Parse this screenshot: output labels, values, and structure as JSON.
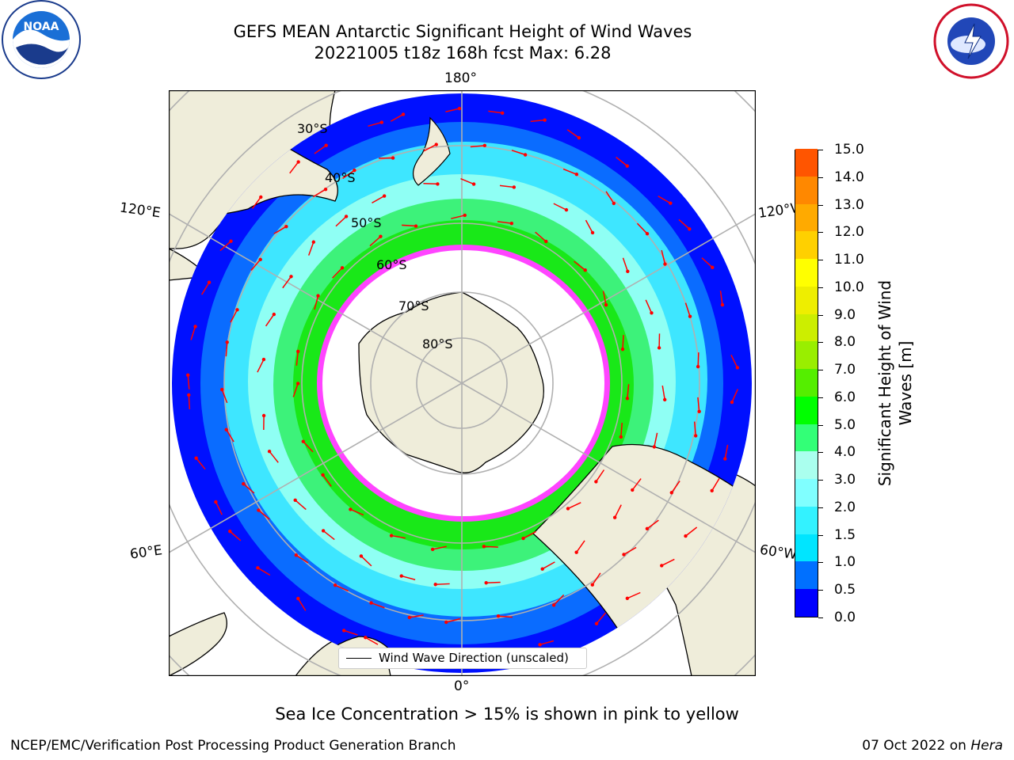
{
  "title_line1": "GEFS MEAN Antarctic Significant Height of Wind Waves",
  "title_line2": "20221005 t18z 168h fcst   Max: 6.28",
  "logos": {
    "left": "NOAA",
    "right": "National Weather Service"
  },
  "map": {
    "projection": "south-polar-stereographic",
    "lon_labels": {
      "top": "180°",
      "bottom": "0°",
      "upper_left": "120°E",
      "lower_left": "60°E",
      "upper_right": "120°W",
      "lower_right": "60°W"
    },
    "lat_labels": [
      "30°S",
      "40°S",
      "50°S",
      "60°S",
      "70°S",
      "80°S"
    ],
    "legend_label": "Wind Wave Direction (unscaled)",
    "colors": {
      "land": "#efedda",
      "ice": "#ffffff",
      "ice_edge": "#ff33ff",
      "arrows": "#ff0000",
      "grid": "#b0b0b0"
    }
  },
  "colorbar": {
    "label": "Significant Height of Wind Waves [m]",
    "ticks": [
      "15.0",
      "14.0",
      "13.0",
      "12.0",
      "11.0",
      "10.0",
      "9.0",
      "8.0",
      "7.0",
      "6.0",
      "5.0",
      "4.0",
      "3.0",
      "2.0",
      "1.5",
      "1.0",
      "0.5",
      "0.0"
    ],
    "colors": [
      "#0000ff",
      "#0070ff",
      "#00e5ff",
      "#33f2ff",
      "#80ffff",
      "#aaffee",
      "#33ff77",
      "#00ff00",
      "#55ee00",
      "#99ee00",
      "#ccee00",
      "#eeee00",
      "#ffff00",
      "#ffd000",
      "#ffaa00",
      "#ff8800",
      "#ff5500",
      "#ff2200",
      "#ff0000"
    ]
  },
  "chart_data": {
    "type": "heatmap",
    "variable": "Significant Height of Wind Waves",
    "units": "m",
    "max": 6.28,
    "levels": [
      0.0,
      0.5,
      1.0,
      1.5,
      2.0,
      3.0,
      4.0,
      5.0,
      6.0,
      7.0,
      8.0,
      9.0,
      10.0,
      11.0,
      12.0,
      13.0,
      14.0,
      15.0
    ]
  },
  "note": "Sea Ice Concentration > 15% is shown in pink to yellow",
  "footer_left": "NCEP/EMC/Verification Post Processing Product Generation Branch",
  "footer_date": "07 Oct 2022 on ",
  "footer_host": "Hera"
}
